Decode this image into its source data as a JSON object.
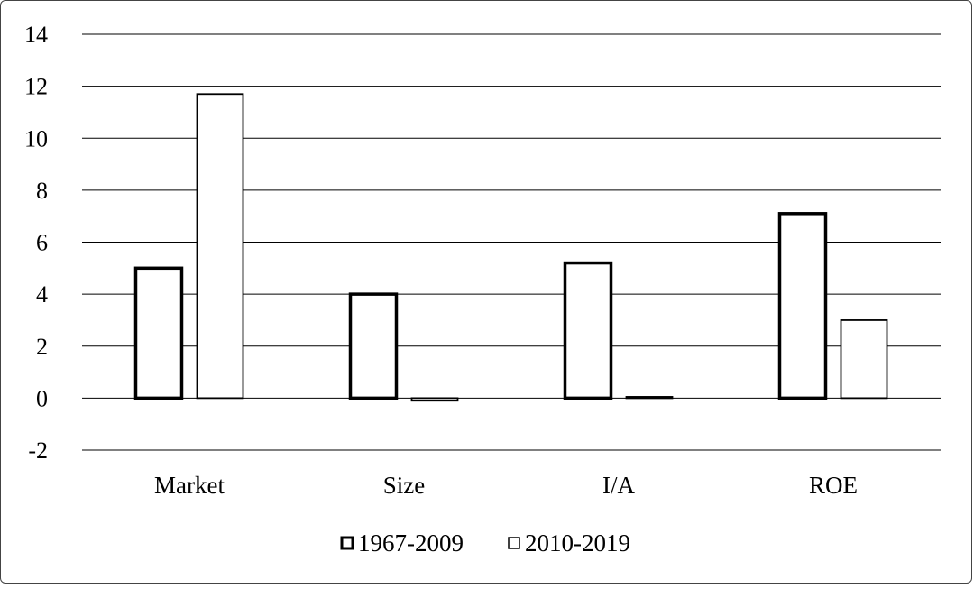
{
  "chart_data": {
    "type": "bar",
    "categories": [
      "Market",
      "Size",
      "I/A",
      "ROE"
    ],
    "series": [
      {
        "name": "1967-2009",
        "values": [
          5.0,
          4.0,
          5.2,
          7.1
        ]
      },
      {
        "name": "2010-2019",
        "values": [
          11.7,
          -0.1,
          0.05,
          3.0
        ]
      }
    ],
    "yticks": [
      "-2",
      "0",
      "2",
      "4",
      "6",
      "8",
      "10",
      "12",
      "14"
    ],
    "ylim": [
      -2,
      14
    ],
    "grid": true,
    "legend_position": "bottom",
    "title": "",
    "xlabel": "",
    "ylabel": ""
  }
}
